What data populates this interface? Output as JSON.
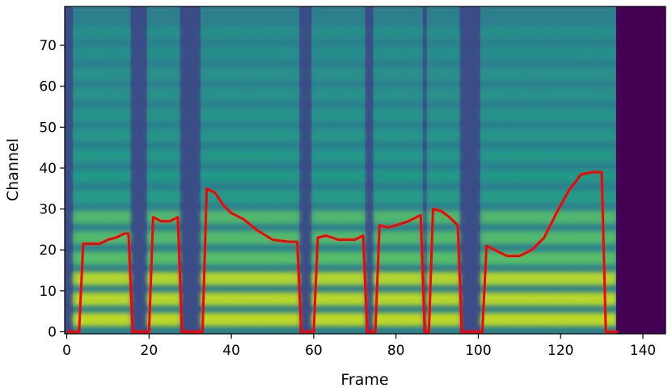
{
  "chart_data": {
    "type": "heatmap",
    "title": "",
    "xlabel": "Frame",
    "ylabel": "Channel",
    "xlim": [
      -0.5,
      145.5
    ],
    "ylim": [
      -0.5,
      79.5
    ],
    "xticks": [
      "0",
      "20",
      "40",
      "60",
      "80",
      "100",
      "120",
      "140"
    ],
    "yticks": [
      "0",
      "10",
      "20",
      "30",
      "40",
      "50",
      "60",
      "70"
    ],
    "colormap": "viridis",
    "frames_total": 146,
    "channels_total": 80,
    "silent_frame_ranges": [
      [
        0,
        1
      ],
      [
        16,
        19
      ],
      [
        28,
        32
      ],
      [
        57,
        59
      ],
      [
        73,
        74
      ],
      [
        87,
        87
      ],
      [
        96,
        100
      ]
    ],
    "padding_frames_from": 134,
    "series": [
      {
        "color": "#ff0000",
        "points": [
          [
            0,
            0
          ],
          [
            3,
            0
          ],
          [
            4,
            21.5
          ],
          [
            6,
            21.5
          ],
          [
            8,
            21.5
          ],
          [
            10,
            22.5
          ],
          [
            12,
            23
          ],
          [
            14,
            24
          ],
          [
            15,
            24
          ],
          [
            16,
            0
          ],
          [
            20,
            0
          ],
          [
            21,
            28
          ],
          [
            23,
            27
          ],
          [
            25,
            27
          ],
          [
            27,
            28
          ],
          [
            28,
            0
          ],
          [
            33,
            0
          ],
          [
            34,
            35
          ],
          [
            36,
            34
          ],
          [
            38,
            31
          ],
          [
            40,
            29
          ],
          [
            43,
            27.5
          ],
          [
            46,
            25
          ],
          [
            50,
            22.5
          ],
          [
            54,
            22
          ],
          [
            56,
            22
          ],
          [
            57,
            0
          ],
          [
            60,
            0
          ],
          [
            61,
            23
          ],
          [
            63,
            23.5
          ],
          [
            66,
            22.5
          ],
          [
            70,
            22.5
          ],
          [
            72,
            23.5
          ],
          [
            73,
            0
          ],
          [
            75,
            0
          ],
          [
            76,
            26
          ],
          [
            78,
            25.5
          ],
          [
            80,
            26
          ],
          [
            83,
            27
          ],
          [
            86,
            28.5
          ],
          [
            87,
            0
          ],
          [
            88,
            0
          ],
          [
            89,
            30
          ],
          [
            91,
            29.5
          ],
          [
            93,
            28
          ],
          [
            95,
            26
          ],
          [
            96,
            0
          ],
          [
            101,
            0
          ],
          [
            102,
            21
          ],
          [
            104,
            20
          ],
          [
            107,
            18.5
          ],
          [
            110,
            18.5
          ],
          [
            113,
            20
          ],
          [
            116,
            23
          ],
          [
            119,
            29
          ],
          [
            122,
            34.5
          ],
          [
            125,
            38.5
          ],
          [
            128,
            39
          ],
          [
            130,
            39
          ],
          [
            131,
            0
          ],
          [
            134,
            0
          ]
        ]
      }
    ]
  }
}
